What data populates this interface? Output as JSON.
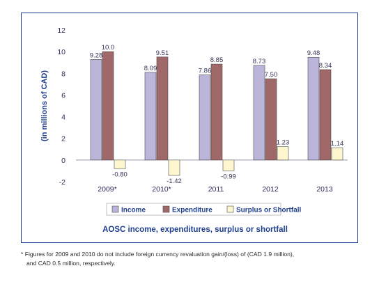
{
  "chart_data": {
    "type": "bar",
    "title": "AOSC income, expenditures, surplus or shortfall",
    "ylabel": "(in millions of CAD)",
    "xlabel": "",
    "ylim": [
      -2,
      12
    ],
    "yticks": [
      -2,
      0,
      2,
      4,
      6,
      8,
      10,
      12
    ],
    "grid": false,
    "legend_position": "bottom",
    "categories": [
      "2009*",
      "2010*",
      "2011",
      "2012",
      "2013"
    ],
    "series": [
      {
        "name": "Income",
        "color": "#bbb5d9",
        "values": [
          9.28,
          8.09,
          7.86,
          8.73,
          9.48
        ],
        "labels": [
          "9.28",
          "8.09",
          "7.86",
          "8.73",
          "9.48"
        ]
      },
      {
        "name": "Expenditure",
        "color": "#a06868",
        "values": [
          10.0,
          9.51,
          8.85,
          7.5,
          8.34
        ],
        "labels": [
          "10.0",
          "9.51",
          "8.85",
          "7.50",
          "8.34"
        ]
      },
      {
        "name": "Surplus or Shortfall",
        "color": "#fdf6cf",
        "values": [
          -0.8,
          -1.42,
          -0.99,
          1.23,
          1.14
        ],
        "labels": [
          "-0.80",
          "-1.42",
          "-0.99",
          "1.23",
          "1.14"
        ]
      }
    ]
  },
  "footnote": {
    "line1": "* Figures for 2009 and 2010 do not include foreign currency revaluation gain/(loss) of (CAD 1.9 million),",
    "line2": "and CAD 0.5 million, respectively."
  },
  "colors": {
    "frame": "#1f3f8f",
    "title_text": "#1f3f8f",
    "axis_text": "#2a2a5a",
    "bar_edge": "#4a4a4a"
  }
}
